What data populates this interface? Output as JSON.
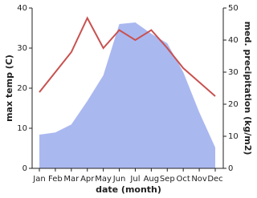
{
  "chart_data": {
    "type": "combo",
    "x_label": "date (month)",
    "y_label": "max temp (C)",
    "y2_label": "med. precipitation (kg/m2)",
    "categories": [
      "Jan",
      "Feb",
      "Mar",
      "Apr",
      "May",
      "Jun",
      "Jul",
      "Aug",
      "Sep",
      "Oct",
      "Nov",
      "Dec"
    ],
    "series": [
      {
        "name": "med. precipitation",
        "kind": "area",
        "axis": "y2",
        "color": "#aab8f0",
        "values": [
          10.5,
          11.2,
          13.7,
          21,
          29,
          45,
          45.5,
          42,
          39,
          30,
          17.5,
          6.5
        ]
      },
      {
        "name": "max temp",
        "kind": "line",
        "axis": "y",
        "color": "#c8514f",
        "values": [
          19,
          24,
          29,
          37.5,
          30,
          34.5,
          32,
          34.5,
          30,
          25,
          21.5,
          18
        ]
      }
    ],
    "ylim": [
      0,
      40
    ],
    "yticks": [
      0,
      10,
      20,
      30,
      40
    ],
    "y2lim": [
      0,
      50
    ],
    "y2ticks": [
      0,
      10,
      20,
      30,
      40,
      50
    ]
  }
}
